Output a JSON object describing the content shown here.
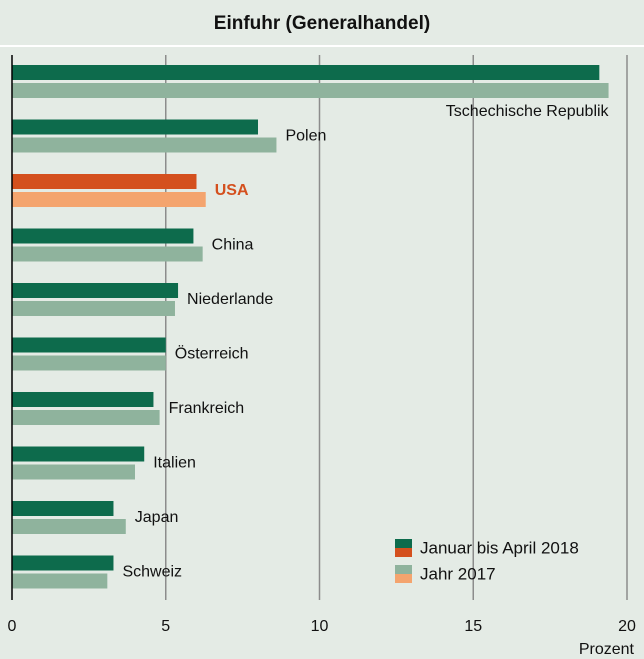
{
  "chart_data": {
    "type": "barh",
    "title": "Einfuhr (Generalhandel)",
    "categories": [
      "Tschechische Republik",
      "Polen",
      "USA",
      "China",
      "Niederlande",
      "Österreich",
      "Frankreich",
      "Italien",
      "Japan",
      "Schweiz"
    ],
    "series": [
      {
        "name": "Januar bis April 2018",
        "color": "#0d6b4c",
        "values": [
          19.1,
          8.0,
          6.0,
          5.9,
          5.4,
          5.0,
          4.6,
          4.3,
          3.3,
          3.3
        ]
      },
      {
        "name": "Jahr 2017",
        "color": "#8fb39d",
        "values": [
          19.4,
          8.6,
          6.3,
          6.2,
          5.3,
          5.0,
          4.8,
          4.0,
          3.7,
          3.1
        ]
      }
    ],
    "highlight": {
      "category_index": 2,
      "colors": [
        "#d4501e",
        "#f4a46e"
      ]
    },
    "xlim": [
      0,
      20
    ],
    "xticks": [
      0,
      5,
      10,
      15,
      20
    ],
    "xlabel": "Prozent",
    "grid": true,
    "legend": "lower right"
  }
}
